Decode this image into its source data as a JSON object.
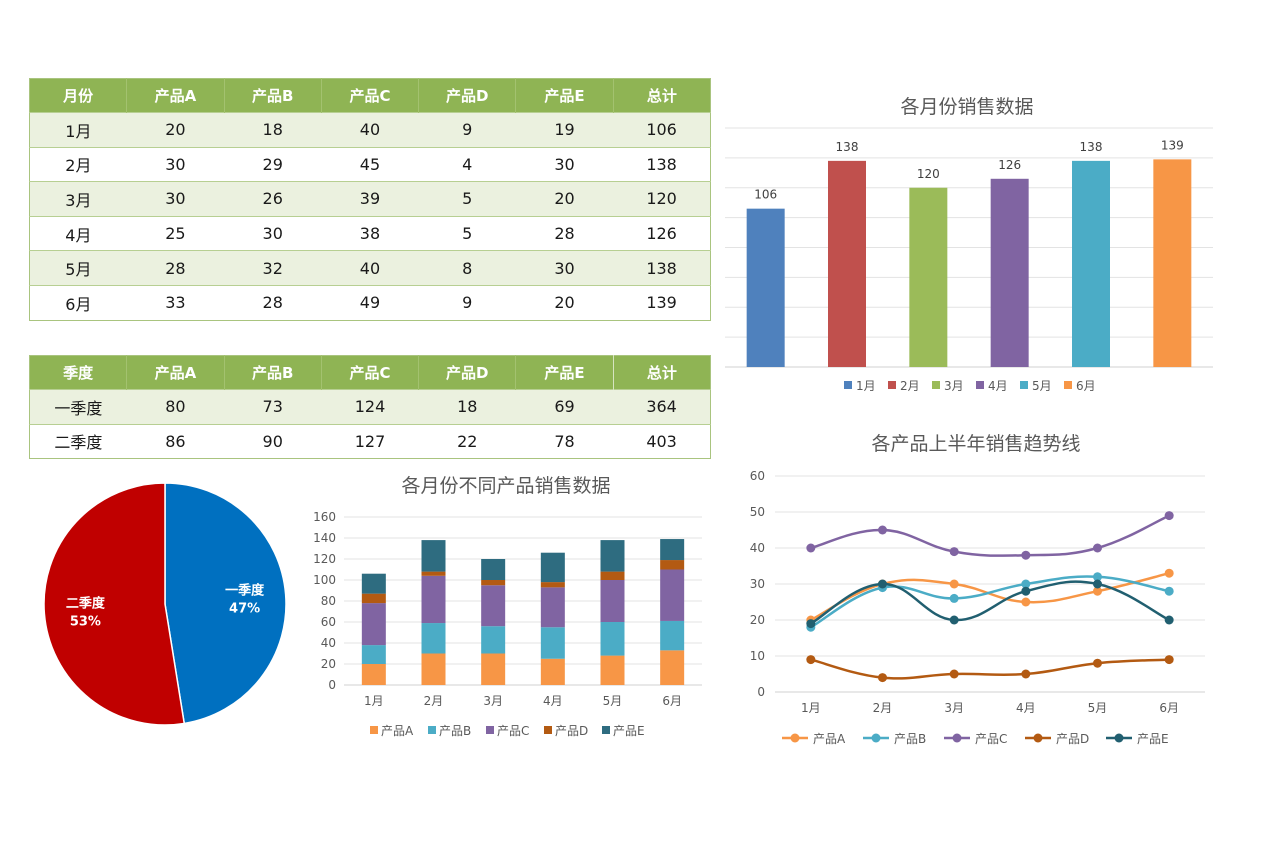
{
  "monthly_table": {
    "headers": [
      "月份",
      "产品A",
      "产品B",
      "产品C",
      "产品D",
      "产品E",
      "总计"
    ],
    "rows": [
      [
        "1月",
        "20",
        "18",
        "40",
        "9",
        "19",
        "106"
      ],
      [
        "2月",
        "30",
        "29",
        "45",
        "4",
        "30",
        "138"
      ],
      [
        "3月",
        "30",
        "26",
        "39",
        "5",
        "20",
        "120"
      ],
      [
        "4月",
        "25",
        "30",
        "38",
        "5",
        "28",
        "126"
      ],
      [
        "5月",
        "28",
        "32",
        "40",
        "8",
        "30",
        "138"
      ],
      [
        "6月",
        "33",
        "28",
        "49",
        "9",
        "20",
        "139"
      ]
    ]
  },
  "quarter_table": {
    "headers": [
      "季度",
      "产品A",
      "产品B",
      "产品C",
      "产品D",
      "产品E",
      "总计"
    ],
    "rows": [
      [
        "一季度",
        "80",
        "73",
        "124",
        "18",
        "69",
        "364"
      ],
      [
        "二季度",
        "86",
        "90",
        "127",
        "22",
        "78",
        "403"
      ]
    ]
  },
  "chart_data": [
    {
      "type": "bar",
      "title": "各月份销售数据",
      "categories": [
        "1月",
        "2月",
        "3月",
        "4月",
        "5月",
        "6月"
      ],
      "values": [
        106,
        138,
        120,
        126,
        138,
        139
      ],
      "colors": [
        "#4f81bd",
        "#c0504d",
        "#9bbb59",
        "#8064a2",
        "#4bacc6",
        "#f79646"
      ],
      "ylim": [
        0,
        160
      ],
      "grid": true,
      "legend": "bottom",
      "data_labels": true
    },
    {
      "type": "pie",
      "title": "",
      "labels": [
        "一季度",
        "二季度"
      ],
      "values": [
        364,
        403
      ],
      "percent_labels": [
        "47%",
        "53%"
      ],
      "colors": [
        "#0070c0",
        "#c00000"
      ]
    },
    {
      "type": "bar",
      "stacked": true,
      "title": "各月份不同产品销售数据",
      "categories": [
        "1月",
        "2月",
        "3月",
        "4月",
        "5月",
        "6月"
      ],
      "series": [
        {
          "name": "产品A",
          "values": [
            20,
            30,
            30,
            25,
            28,
            33
          ],
          "color": "#f79646"
        },
        {
          "name": "产品B",
          "values": [
            18,
            29,
            26,
            30,
            32,
            28
          ],
          "color": "#4bacc6"
        },
        {
          "name": "产品C",
          "values": [
            40,
            45,
            39,
            38,
            40,
            49
          ],
          "color": "#8064a2"
        },
        {
          "name": "产品D",
          "values": [
            9,
            4,
            5,
            5,
            8,
            9
          ],
          "color": "#b35a12"
        },
        {
          "name": "产品E",
          "values": [
            19,
            30,
            20,
            28,
            30,
            20
          ],
          "color": "#2e6c80"
        }
      ],
      "ylim": [
        0,
        160
      ],
      "yticks": [
        0,
        20,
        40,
        60,
        80,
        100,
        120,
        140,
        160
      ],
      "grid": true,
      "legend": "bottom"
    },
    {
      "type": "line",
      "smooth": true,
      "title": "各产品上半年销售趋势线",
      "categories": [
        "1月",
        "2月",
        "3月",
        "4月",
        "5月",
        "6月"
      ],
      "series": [
        {
          "name": "产品A",
          "values": [
            20,
            30,
            30,
            25,
            28,
            33
          ],
          "color": "#f79646"
        },
        {
          "name": "产品B",
          "values": [
            18,
            29,
            26,
            30,
            32,
            28
          ],
          "color": "#4bacc6"
        },
        {
          "name": "产品C",
          "values": [
            40,
            45,
            39,
            38,
            40,
            49
          ],
          "color": "#8064a2"
        },
        {
          "name": "产品D",
          "values": [
            9,
            4,
            5,
            5,
            8,
            9
          ],
          "color": "#b35a12"
        },
        {
          "name": "产品E",
          "values": [
            19,
            30,
            20,
            28,
            30,
            20
          ],
          "color": "#215f70"
        }
      ],
      "ylim": [
        0,
        60
      ],
      "yticks": [
        0,
        10,
        20,
        30,
        40,
        50,
        60
      ],
      "grid": true,
      "legend": "bottom"
    }
  ]
}
